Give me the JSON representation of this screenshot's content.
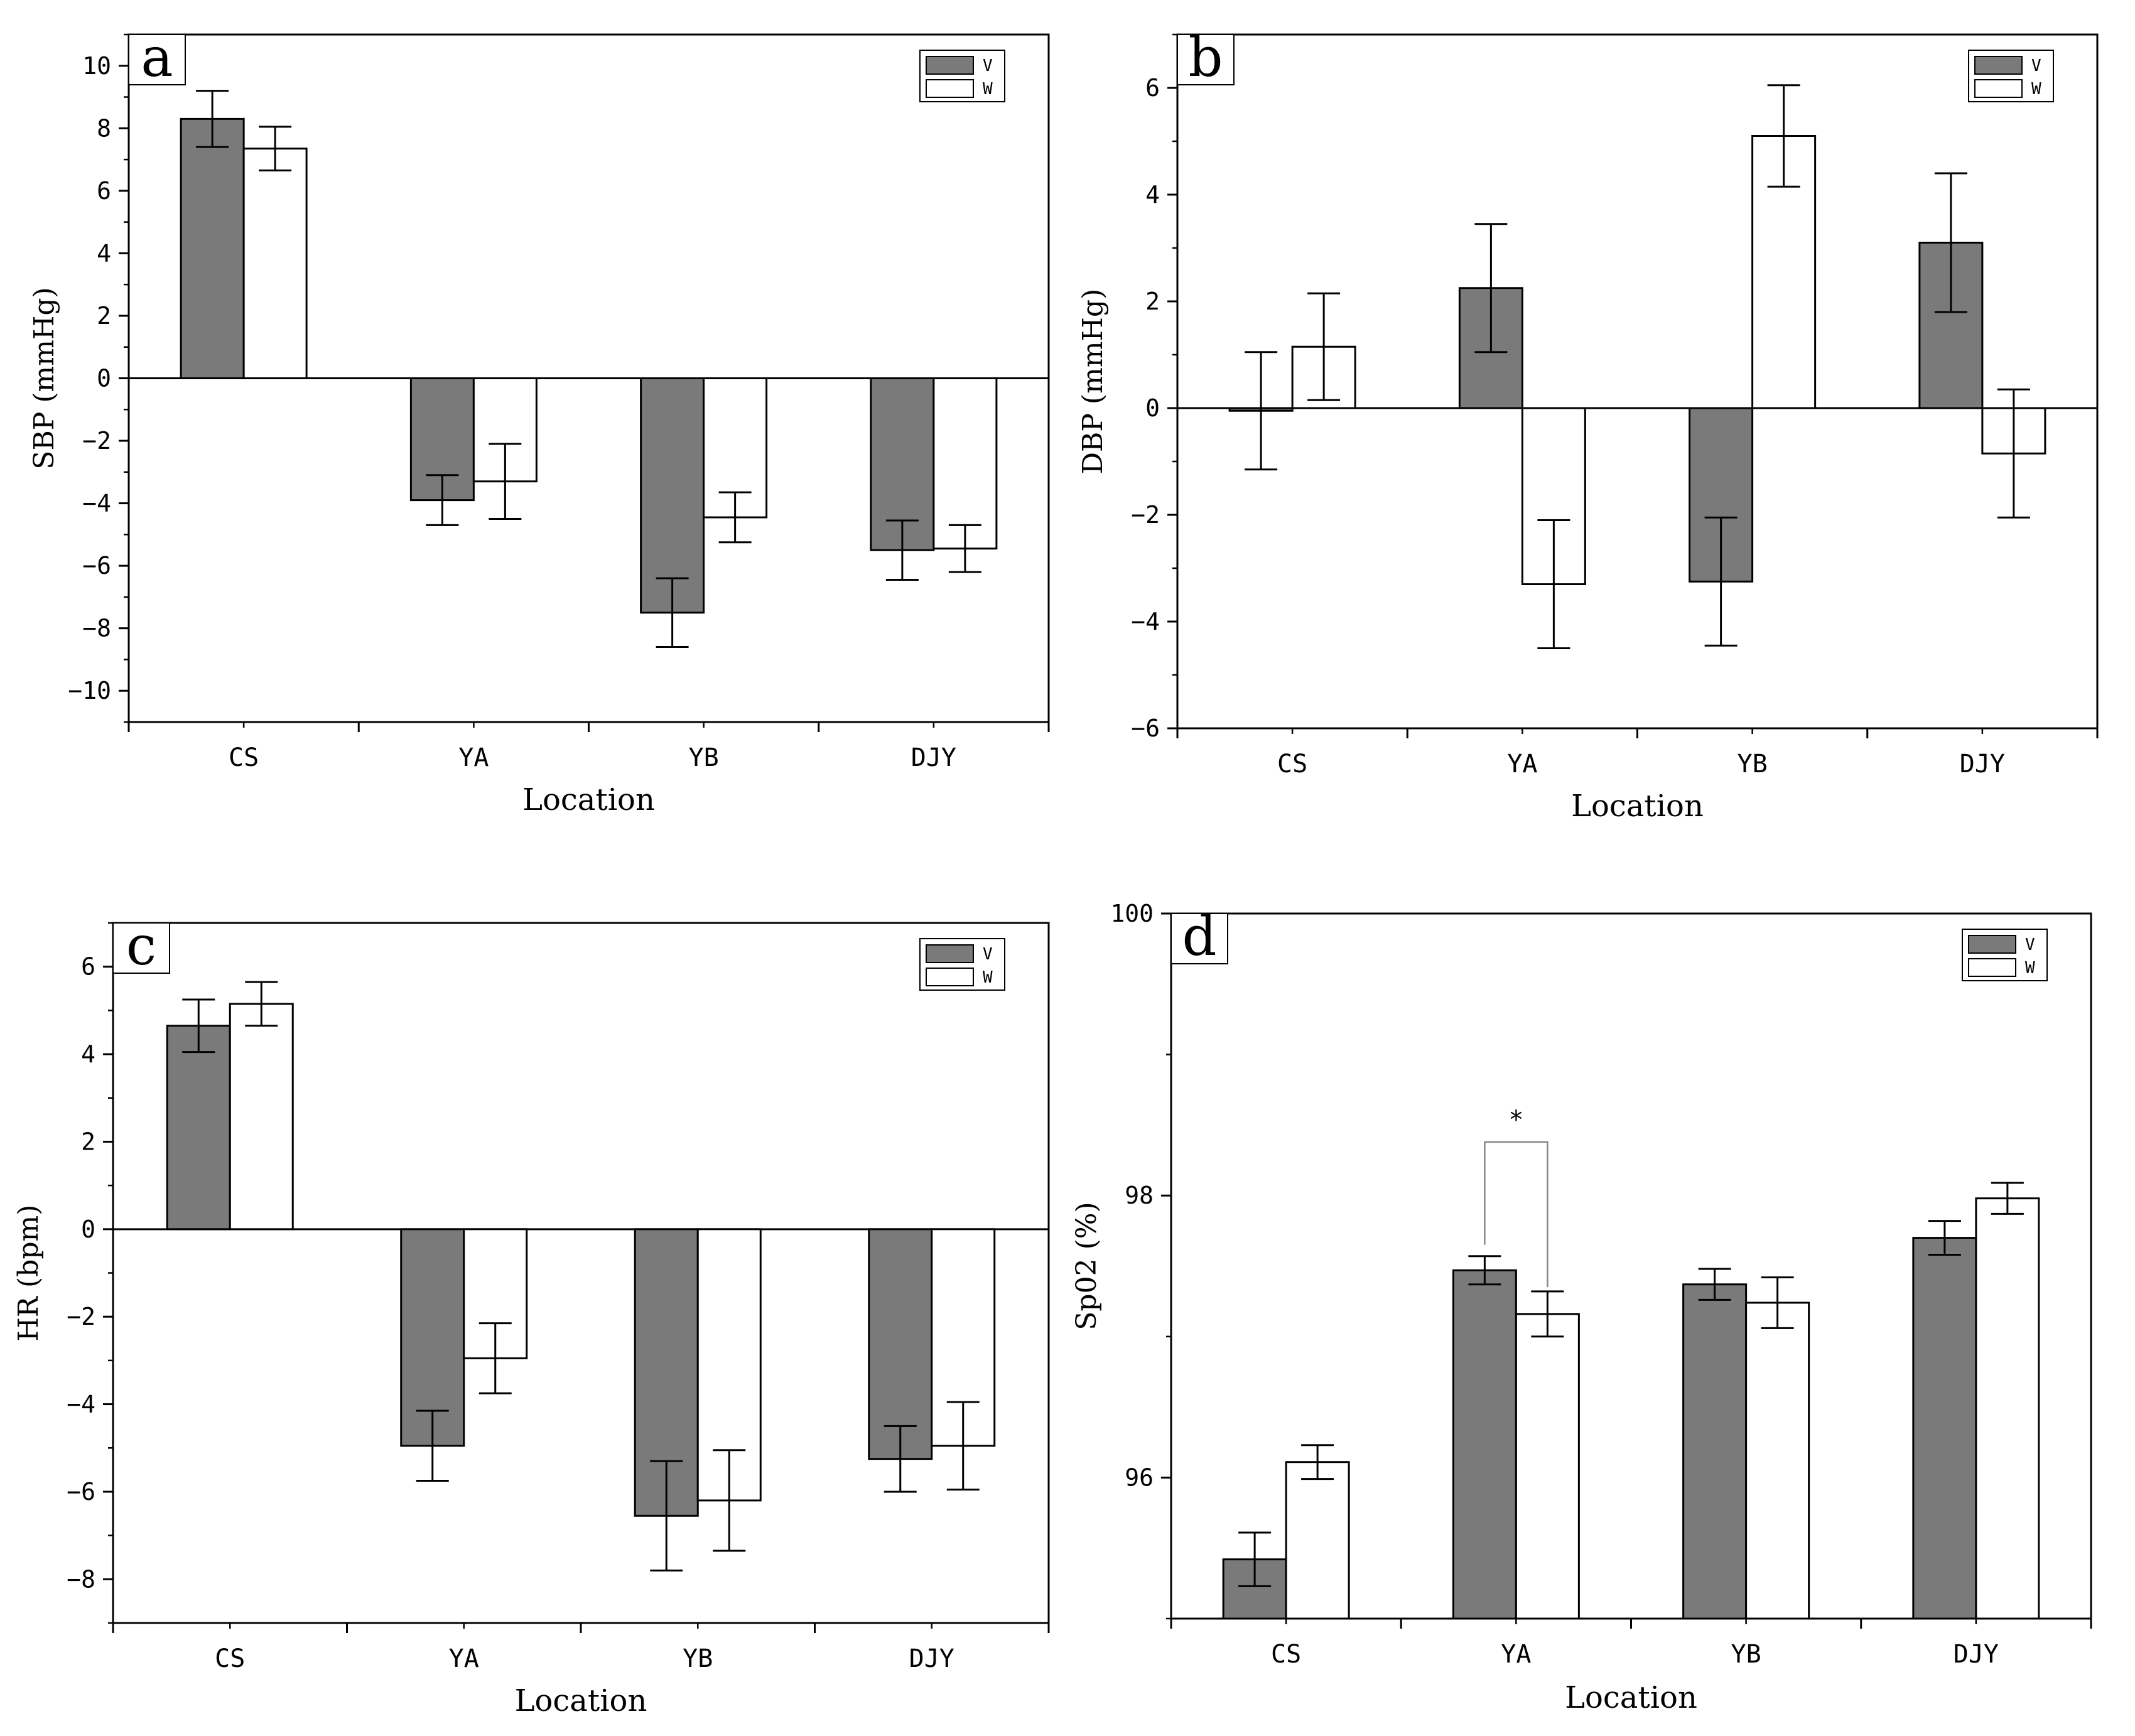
{
  "chart_data": [
    {
      "type": "bar",
      "panel_label": "a",
      "categories": [
        "CS",
        "YA",
        "YB",
        "DJY"
      ],
      "series": [
        {
          "name": "V",
          "color": "#7a7a7a",
          "values": [
            8.3,
            -3.9,
            -7.5,
            -5.5
          ],
          "errors": [
            0.9,
            0.8,
            1.1,
            0.95
          ]
        },
        {
          "name": "W",
          "color": "#ffffff",
          "values": [
            7.35,
            -3.3,
            -4.45,
            -5.45
          ],
          "errors": [
            0.7,
            1.2,
            0.8,
            0.75
          ]
        }
      ],
      "xlabel": "Location",
      "ylabel": "SBP (mmHg)",
      "ylim": [
        -11,
        11
      ],
      "yticks": [
        -10,
        -8,
        -6,
        -4,
        -2,
        0,
        2,
        4,
        6,
        8,
        10
      ],
      "yticklabels": [
        "−10",
        "−8",
        "−6",
        "−4",
        "−2",
        "0",
        "2",
        "4",
        "6",
        "8",
        "10"
      ],
      "zero_line": true,
      "legend_position": "top-right",
      "significance": []
    },
    {
      "type": "bar",
      "panel_label": "b",
      "categories": [
        "CS",
        "YA",
        "YB",
        "DJY"
      ],
      "series": [
        {
          "name": "V",
          "color": "#7a7a7a",
          "values": [
            -0.05,
            2.25,
            -3.25,
            3.1
          ],
          "errors": [
            1.1,
            1.2,
            1.2,
            1.3
          ]
        },
        {
          "name": "W",
          "color": "#ffffff",
          "values": [
            1.15,
            -3.3,
            5.1,
            -0.85
          ],
          "errors": [
            1.0,
            1.2,
            0.95,
            1.2
          ]
        }
      ],
      "xlabel": "Location",
      "ylabel": "DBP (mmHg)",
      "ylim": [
        -6,
        7
      ],
      "yticks": [
        -6,
        -4,
        -2,
        0,
        2,
        4,
        6
      ],
      "yticklabels": [
        "−6",
        "−4",
        "−2",
        "0",
        "2",
        "4",
        "6"
      ],
      "zero_line": true,
      "legend_position": "top-right",
      "significance": []
    },
    {
      "type": "bar",
      "panel_label": "c",
      "categories": [
        "CS",
        "YA",
        "YB",
        "DJY"
      ],
      "series": [
        {
          "name": "V",
          "color": "#7a7a7a",
          "values": [
            4.65,
            -4.95,
            -6.55,
            -5.25
          ],
          "errors": [
            0.6,
            0.8,
            1.25,
            0.75
          ]
        },
        {
          "name": "W",
          "color": "#ffffff",
          "values": [
            5.15,
            -2.95,
            -6.2,
            -4.95
          ],
          "errors": [
            0.5,
            0.8,
            1.15,
            1.0
          ]
        }
      ],
      "xlabel": "Location",
      "ylabel": "HR (bpm)",
      "ylim": [
        -9,
        7
      ],
      "yticks": [
        -8,
        -6,
        -4,
        -2,
        0,
        2,
        4,
        6
      ],
      "yticklabels": [
        "−8",
        "−6",
        "−4",
        "−2",
        "0",
        "2",
        "4",
        "6"
      ],
      "zero_line": true,
      "legend_position": "top-right",
      "significance": []
    },
    {
      "type": "bar",
      "panel_label": "d",
      "categories": [
        "CS",
        "YA",
        "YB",
        "DJY"
      ],
      "series": [
        {
          "name": "V",
          "color": "#7a7a7a",
          "values": [
            95.42,
            97.47,
            97.37,
            97.7
          ],
          "errors": [
            0.19,
            0.1,
            0.11,
            0.12
          ]
        },
        {
          "name": "W",
          "color": "#ffffff",
          "values": [
            96.11,
            97.16,
            97.24,
            97.98
          ],
          "errors": [
            0.12,
            0.16,
            0.18,
            0.11
          ]
        }
      ],
      "xlabel": "Location",
      "ylabel": "Sp02 (%)",
      "ylim": [
        95,
        100
      ],
      "yticks": [
        96,
        98,
        100
      ],
      "yticklabels": [
        "96",
        "98",
        "100"
      ],
      "zero_line": false,
      "legend_position": "top-right",
      "significance": [
        {
          "category": "YA",
          "label": "*",
          "bracket_top": 98.38,
          "left_bottom": 97.65,
          "right_bottom": 97.35
        }
      ]
    }
  ]
}
